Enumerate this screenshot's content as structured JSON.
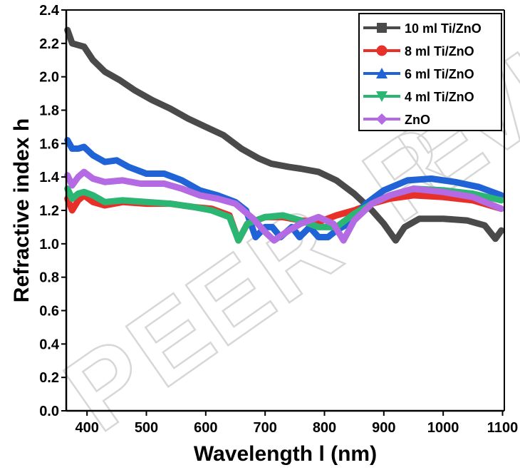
{
  "chart_data": {
    "type": "line",
    "title": "",
    "xlabel": "Wavelength l  (nm)",
    "ylabel": "Refractive index h",
    "xlim": [
      365,
      1103
    ],
    "ylim": [
      0.0,
      2.4
    ],
    "xticks": [
      400,
      500,
      600,
      700,
      800,
      900,
      1000,
      1100
    ],
    "yticks": [
      0.0,
      0.2,
      0.4,
      0.6,
      0.8,
      1.0,
      1.2,
      1.4,
      1.6,
      1.8,
      2.0,
      2.2,
      2.4
    ],
    "ytick_labels": [
      "0.0",
      "0.2",
      "0.4",
      "0.6",
      "0.8",
      "1.0",
      "1.2",
      "1.4",
      "1.6",
      "1.8",
      "2.0",
      "2.2",
      "2.4"
    ],
    "grid": false,
    "legend_position": "top-right",
    "watermark": "PEER REVIEW",
    "series": [
      {
        "name": "10 ml Ti/ZnO",
        "color": "#4a4a4a",
        "marker": "square",
        "points": [
          [
            367,
            2.28
          ],
          [
            375,
            2.2
          ],
          [
            385,
            2.19
          ],
          [
            395,
            2.18
          ],
          [
            410,
            2.1
          ],
          [
            430,
            2.03
          ],
          [
            455,
            1.98
          ],
          [
            480,
            1.92
          ],
          [
            510,
            1.86
          ],
          [
            540,
            1.81
          ],
          [
            570,
            1.75
          ],
          [
            600,
            1.7
          ],
          [
            630,
            1.65
          ],
          [
            660,
            1.57
          ],
          [
            690,
            1.51
          ],
          [
            710,
            1.48
          ],
          [
            740,
            1.46
          ],
          [
            760,
            1.45
          ],
          [
            790,
            1.43
          ],
          [
            820,
            1.38
          ],
          [
            850,
            1.3
          ],
          [
            880,
            1.2
          ],
          [
            900,
            1.12
          ],
          [
            920,
            1.02
          ],
          [
            935,
            1.1
          ],
          [
            960,
            1.15
          ],
          [
            1000,
            1.15
          ],
          [
            1040,
            1.14
          ],
          [
            1070,
            1.11
          ],
          [
            1088,
            1.03
          ],
          [
            1098,
            1.08
          ]
        ]
      },
      {
        "name": "8 ml Ti/ZnO",
        "color": "#e8302a",
        "marker": "circle",
        "points": [
          [
            367,
            1.27
          ],
          [
            375,
            1.2
          ],
          [
            385,
            1.26
          ],
          [
            395,
            1.29
          ],
          [
            410,
            1.25
          ],
          [
            430,
            1.23
          ],
          [
            460,
            1.25
          ],
          [
            500,
            1.24
          ],
          [
            540,
            1.24
          ],
          [
            580,
            1.22
          ],
          [
            610,
            1.21
          ],
          [
            640,
            1.17
          ],
          [
            655,
            1.02
          ],
          [
            670,
            1.12
          ],
          [
            700,
            1.16
          ],
          [
            730,
            1.16
          ],
          [
            760,
            1.14
          ],
          [
            790,
            1.13
          ],
          [
            820,
            1.17
          ],
          [
            850,
            1.2
          ],
          [
            880,
            1.24
          ],
          [
            910,
            1.27
          ],
          [
            950,
            1.29
          ],
          [
            1000,
            1.28
          ],
          [
            1050,
            1.26
          ],
          [
            1098,
            1.21
          ]
        ]
      },
      {
        "name": "6 ml Ti/ZnO",
        "color": "#1f63d6",
        "marker": "triangle-up",
        "points": [
          [
            367,
            1.62
          ],
          [
            375,
            1.57
          ],
          [
            385,
            1.57
          ],
          [
            395,
            1.58
          ],
          [
            410,
            1.53
          ],
          [
            430,
            1.49
          ],
          [
            450,
            1.5
          ],
          [
            470,
            1.46
          ],
          [
            500,
            1.42
          ],
          [
            530,
            1.42
          ],
          [
            560,
            1.38
          ],
          [
            590,
            1.32
          ],
          [
            620,
            1.29
          ],
          [
            650,
            1.25
          ],
          [
            668,
            1.2
          ],
          [
            684,
            1.04
          ],
          [
            700,
            1.1
          ],
          [
            712,
            1.1
          ],
          [
            726,
            1.04
          ],
          [
            745,
            1.1
          ],
          [
            758,
            1.04
          ],
          [
            775,
            1.1
          ],
          [
            790,
            1.04
          ],
          [
            806,
            1.04
          ],
          [
            820,
            1.08
          ],
          [
            840,
            1.12
          ],
          [
            870,
            1.24
          ],
          [
            900,
            1.32
          ],
          [
            940,
            1.38
          ],
          [
            980,
            1.39
          ],
          [
            1020,
            1.37
          ],
          [
            1060,
            1.34
          ],
          [
            1098,
            1.29
          ]
        ]
      },
      {
        "name": "4 ml Ti/ZnO",
        "color": "#2bb673",
        "marker": "triangle-down",
        "points": [
          [
            367,
            1.33
          ],
          [
            375,
            1.27
          ],
          [
            385,
            1.3
          ],
          [
            395,
            1.31
          ],
          [
            410,
            1.29
          ],
          [
            430,
            1.25
          ],
          [
            460,
            1.26
          ],
          [
            500,
            1.25
          ],
          [
            540,
            1.24
          ],
          [
            580,
            1.22
          ],
          [
            610,
            1.2
          ],
          [
            640,
            1.16
          ],
          [
            655,
            1.02
          ],
          [
            670,
            1.12
          ],
          [
            700,
            1.16
          ],
          [
            730,
            1.17
          ],
          [
            760,
            1.14
          ],
          [
            790,
            1.1
          ],
          [
            820,
            1.1
          ],
          [
            850,
            1.18
          ],
          [
            880,
            1.24
          ],
          [
            910,
            1.29
          ],
          [
            950,
            1.33
          ],
          [
            1000,
            1.32
          ],
          [
            1050,
            1.3
          ],
          [
            1098,
            1.26
          ]
        ]
      },
      {
        "name": "ZnO",
        "color": "#b36ae2",
        "marker": "diamond",
        "points": [
          [
            367,
            1.41
          ],
          [
            375,
            1.35
          ],
          [
            385,
            1.4
          ],
          [
            395,
            1.43
          ],
          [
            410,
            1.39
          ],
          [
            430,
            1.37
          ],
          [
            460,
            1.38
          ],
          [
            490,
            1.36
          ],
          [
            530,
            1.36
          ],
          [
            560,
            1.33
          ],
          [
            590,
            1.29
          ],
          [
            620,
            1.27
          ],
          [
            650,
            1.24
          ],
          [
            680,
            1.15
          ],
          [
            700,
            1.07
          ],
          [
            715,
            1.02
          ],
          [
            740,
            1.08
          ],
          [
            760,
            1.12
          ],
          [
            790,
            1.16
          ],
          [
            815,
            1.12
          ],
          [
            832,
            1.02
          ],
          [
            850,
            1.14
          ],
          [
            880,
            1.24
          ],
          [
            910,
            1.29
          ],
          [
            950,
            1.33
          ],
          [
            1000,
            1.31
          ],
          [
            1050,
            1.28
          ],
          [
            1098,
            1.21
          ]
        ]
      }
    ]
  }
}
